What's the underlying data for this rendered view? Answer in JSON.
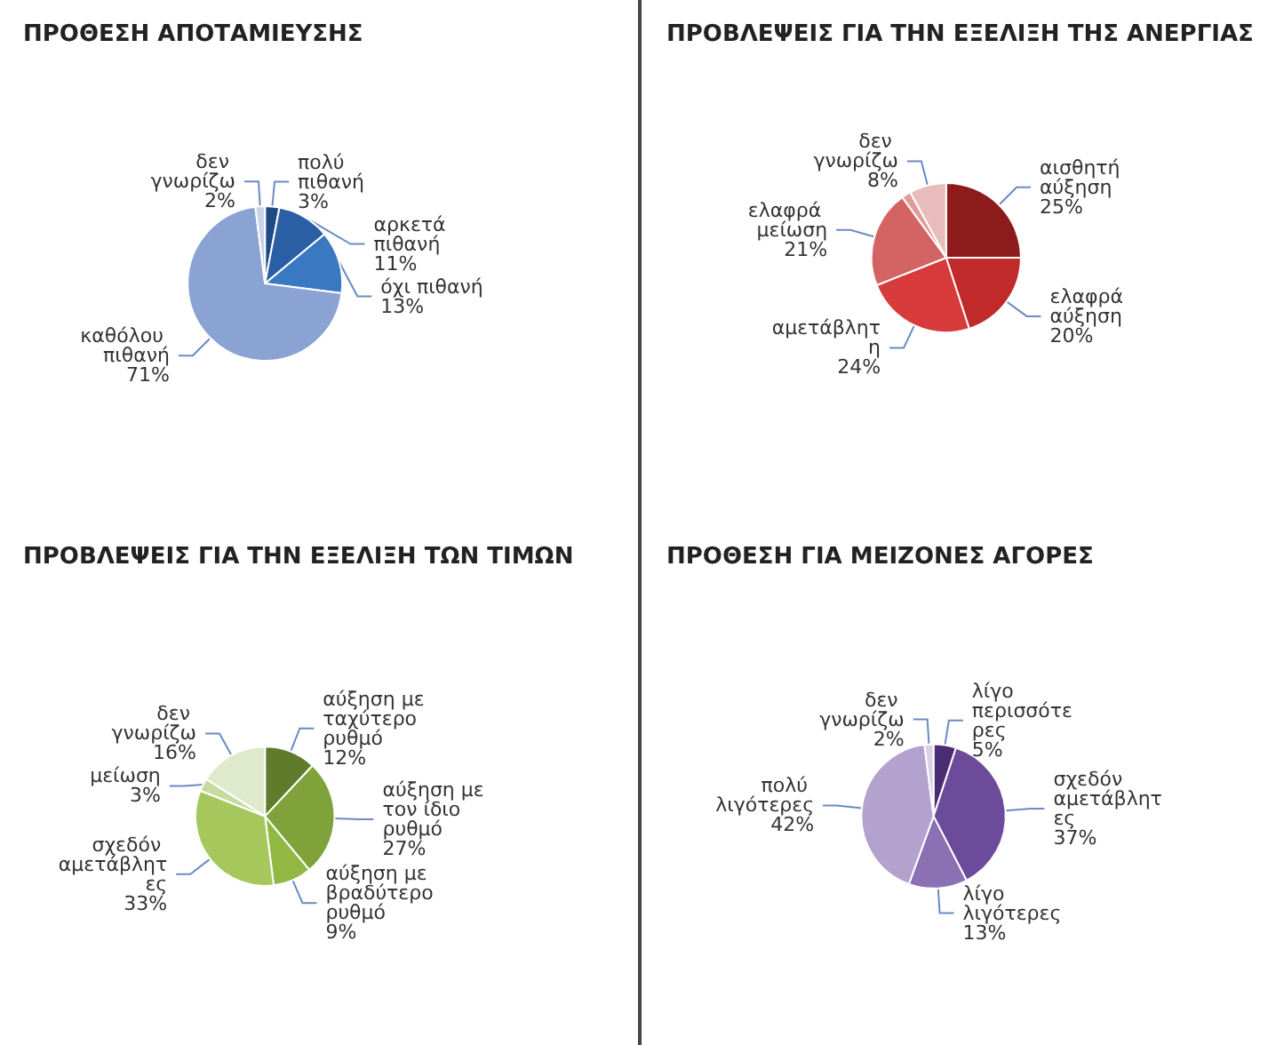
{
  "chart_data": [
    {
      "type": "pie",
      "title": "ΠΡΟΘΕΣΗ ΑΠΟΤΑΜΙΕΥΣΗΣ",
      "categories": [
        "πολύ πιθανή",
        "αρκετά πιθανή",
        "όχι πιθανή",
        "καθόλου πιθανή",
        "δεν γνωρίζω"
      ],
      "values": [
        3,
        11,
        13,
        71,
        2
      ],
      "value_labels": [
        "3%",
        "11%",
        "13%",
        "71%",
        "2%"
      ],
      "colors": [
        "#1e4a86",
        "#2a5fa6",
        "#3b78c2",
        "#8aa3d2",
        "#c8d3ea"
      ],
      "legend": false
    },
    {
      "type": "pie",
      "title": "ΠΡΟΒΛΕΨΕΙΣ ΓΙΑ ΤΗΝ ΕΞΕΛΙΞΗ ΤΗΣ ΑΝΕΡΓΙΑΣ",
      "categories": [
        "αισθητή αύξηση",
        "ελαφρά αύξηση",
        "αμετάβλητη",
        "ελαφρά μείωση",
        null,
        "δεν γνωρίζω"
      ],
      "values": [
        25,
        20,
        24,
        21,
        2,
        8
      ],
      "value_labels": [
        "25%",
        "20%",
        "24%",
        "21%",
        null,
        "8%"
      ],
      "colors": [
        "#8e1b1b",
        "#c02a2a",
        "#d83b3b",
        "#d46464",
        "#e49a9a",
        "#e8bcbc"
      ],
      "legend": false
    },
    {
      "type": "pie",
      "title": "ΠΡΟΒΛΕΨΕΙΣ ΓΙΑ ΤΗΝ ΕΞΕΛΙΞΗ ΤΩΝ ΤΙΜΩΝ",
      "categories": [
        "αύξηση με ταχύτερο ρυθμό",
        "αύξηση με τον ίδιο ρυθμό",
        "αύξηση με βραδύτερο ρυθμό",
        "σχεδόν αμετάβλητες",
        "μείωση",
        "δεν γνωρίζω"
      ],
      "values": [
        12,
        27,
        9,
        33,
        3,
        16
      ],
      "value_labels": [
        "12%",
        "27%",
        "9%",
        "33%",
        "3%",
        "16%"
      ],
      "colors": [
        "#5f7b2b",
        "#7fa33a",
        "#90b842",
        "#a6c75c",
        "#c6dba0",
        "#dfe9cb"
      ],
      "legend": false
    },
    {
      "type": "pie",
      "title": "ΠΡΟΘΕΣΗ ΓΙΑ ΜΕΙΖΟΝΕΣ ΑΓΟΡΕΣ",
      "categories": [
        "λίγο περισσότερες",
        "σχεδόν αμετάβλητες",
        "λίγο λιγότερες",
        "πολύ λιγότερες",
        "δεν γνωρίζω"
      ],
      "values": [
        5,
        37,
        13,
        42,
        2
      ],
      "value_labels": [
        "5%",
        "37%",
        "13%",
        "42%",
        "2%"
      ],
      "colors": [
        "#4b2d74",
        "#6c4b9b",
        "#8b70b3",
        "#b2a2cd",
        "#dad1e7"
      ],
      "legend": false
    }
  ]
}
